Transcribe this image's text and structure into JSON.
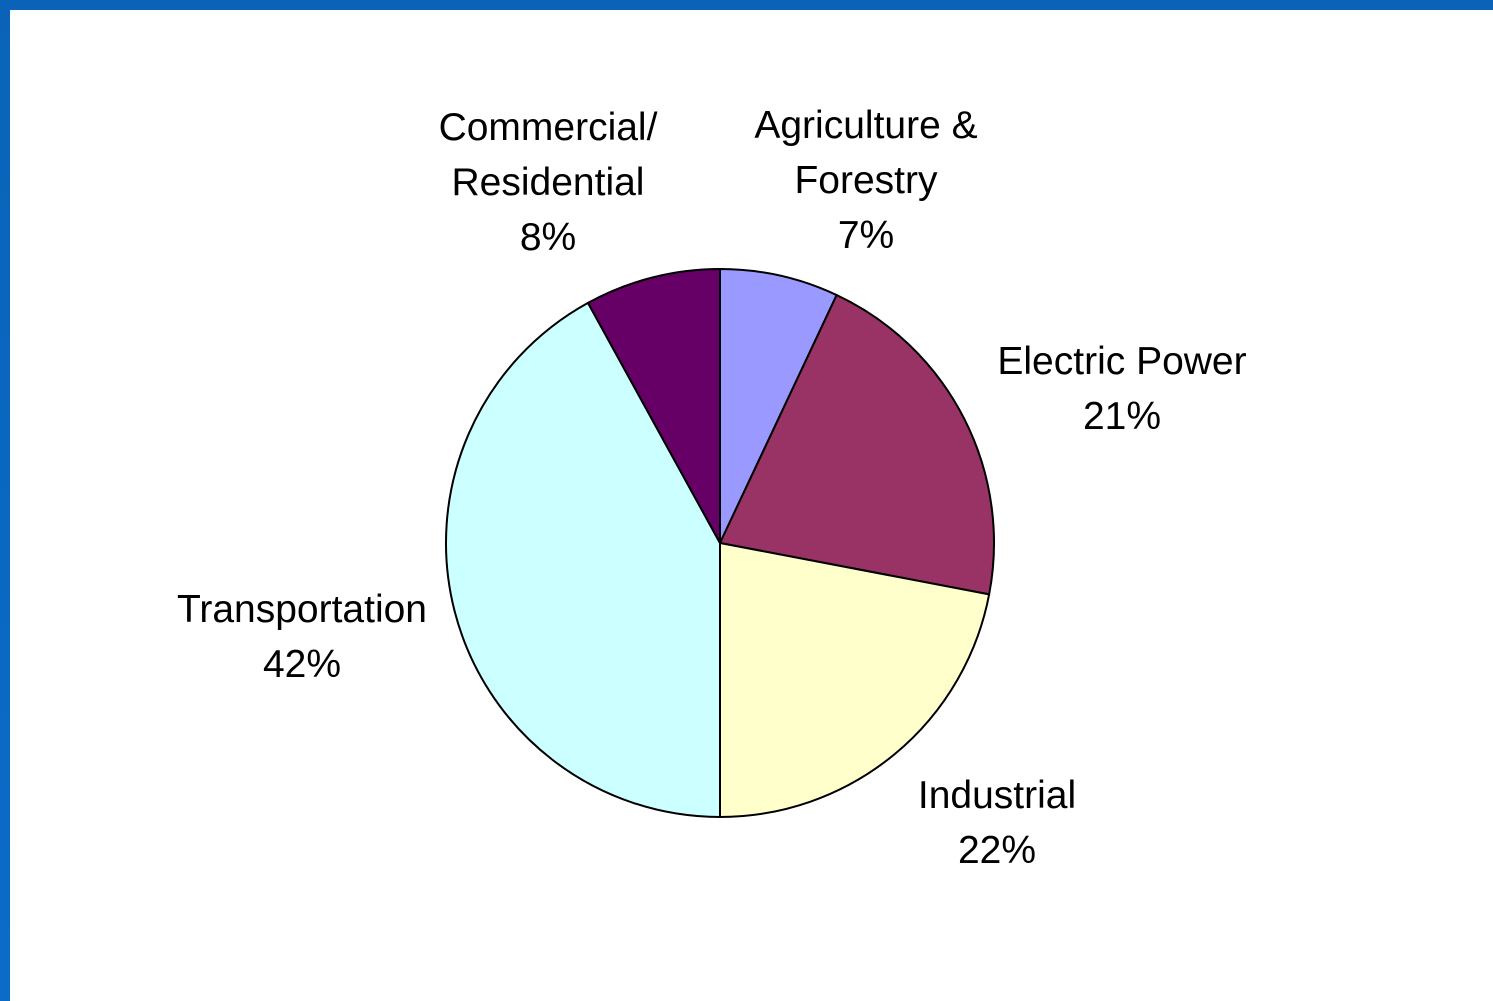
{
  "chart_data": {
    "type": "pie",
    "title": "",
    "start_angle_deg": 0,
    "direction": "clockwise",
    "slices": [
      {
        "name_lines": [
          "Agriculture &",
          "Forestry"
        ],
        "value": 7,
        "label": "7%",
        "color": "#9999ff"
      },
      {
        "name_lines": [
          "Electric Power"
        ],
        "value": 21,
        "label": "21%",
        "color": "#993366"
      },
      {
        "name_lines": [
          "Industrial"
        ],
        "value": 22,
        "label": "22%",
        "color": "#ffffcc"
      },
      {
        "name_lines": [
          "Transportation"
        ],
        "value": 42,
        "label": "42%",
        "color": "#ccffff"
      },
      {
        "name_lines": [
          "Commercial/",
          "Residential"
        ],
        "value": 8,
        "label": "8%",
        "color": "#660066"
      }
    ]
  }
}
